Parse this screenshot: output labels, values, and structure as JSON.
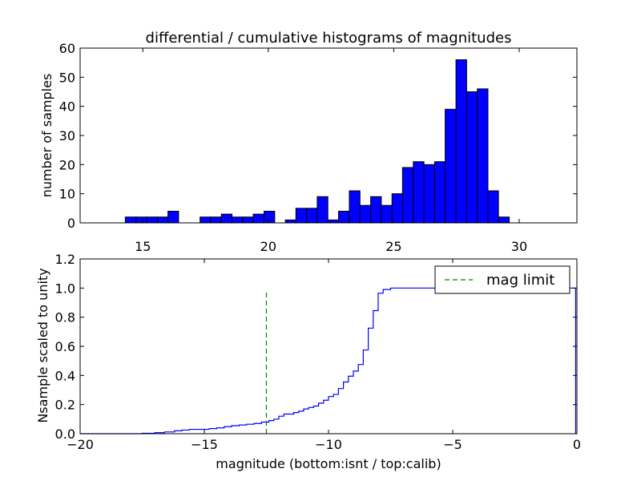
{
  "chart_data": [
    {
      "type": "bar",
      "title": "differential / cumulative histograms of magnitudes",
      "xlabel": "",
      "ylabel": "number of samples",
      "xlim": [
        12.5,
        32.3
      ],
      "ylim": [
        0,
        60
      ],
      "xticks": [
        15,
        20,
        25,
        30
      ],
      "yticks": [
        0,
        10,
        20,
        30,
        40,
        50,
        60
      ],
      "bar_color": "#0000ff",
      "bin_width": 0.425,
      "bins": [
        {
          "left": 14.3,
          "count": 2
        },
        {
          "left": 14.73,
          "count": 2
        },
        {
          "left": 15.15,
          "count": 2
        },
        {
          "left": 15.58,
          "count": 2
        },
        {
          "left": 16.0,
          "count": 4
        },
        {
          "left": 17.28,
          "count": 2
        },
        {
          "left": 17.7,
          "count": 2
        },
        {
          "left": 18.13,
          "count": 3
        },
        {
          "left": 18.55,
          "count": 2
        },
        {
          "left": 18.98,
          "count": 2
        },
        {
          "left": 19.4,
          "count": 3
        },
        {
          "left": 19.83,
          "count": 4
        },
        {
          "left": 20.68,
          "count": 1
        },
        {
          "left": 21.1,
          "count": 5
        },
        {
          "left": 21.53,
          "count": 5
        },
        {
          "left": 21.95,
          "count": 9
        },
        {
          "left": 22.38,
          "count": 1
        },
        {
          "left": 22.8,
          "count": 4
        },
        {
          "left": 23.23,
          "count": 11
        },
        {
          "left": 23.65,
          "count": 6
        },
        {
          "left": 24.08,
          "count": 9
        },
        {
          "left": 24.5,
          "count": 6
        },
        {
          "left": 24.93,
          "count": 10
        },
        {
          "left": 25.35,
          "count": 19
        },
        {
          "left": 25.78,
          "count": 21
        },
        {
          "left": 26.2,
          "count": 20
        },
        {
          "left": 26.63,
          "count": 21
        },
        {
          "left": 27.05,
          "count": 39
        },
        {
          "left": 27.48,
          "count": 56
        },
        {
          "left": 27.9,
          "count": 45
        },
        {
          "left": 28.33,
          "count": 46
        },
        {
          "left": 28.75,
          "count": 11
        },
        {
          "left": 29.18,
          "count": 2
        }
      ]
    },
    {
      "type": "line",
      "title": "",
      "xlabel": "magnitude (bottom:isnt / top:calib)",
      "ylabel": "Nsample scaled to unity",
      "xlim": [
        -20,
        0
      ],
      "ylim": [
        0,
        1.2
      ],
      "xticks": [
        -20,
        -15,
        -10,
        -5,
        0
      ],
      "yticks": [
        0.0,
        0.2,
        0.4,
        0.6,
        0.8,
        1.0,
        1.2
      ],
      "legend_position": "top-right",
      "series": [
        {
          "name": "",
          "color": "#0000ff",
          "style": "steps",
          "points": [
            [
              -20,
              0
            ],
            [
              -18.0,
              0
            ],
            [
              -17.5,
              0.003
            ],
            [
              -17.0,
              0.007
            ],
            [
              -16.6,
              0.012
            ],
            [
              -16.2,
              0.02
            ],
            [
              -15.9,
              0.025
            ],
            [
              -15.6,
              0.03
            ],
            [
              -14.8,
              0.035
            ],
            [
              -14.5,
              0.04
            ],
            [
              -14.2,
              0.048
            ],
            [
              -13.9,
              0.055
            ],
            [
              -13.6,
              0.06
            ],
            [
              -13.3,
              0.065
            ],
            [
              -13.0,
              0.07
            ],
            [
              -12.7,
              0.08
            ],
            [
              -12.4,
              0.09
            ],
            [
              -12.2,
              0.1
            ],
            [
              -12.0,
              0.12
            ],
            [
              -11.8,
              0.135
            ],
            [
              -11.4,
              0.145
            ],
            [
              -11.2,
              0.155
            ],
            [
              -11.0,
              0.17
            ],
            [
              -10.8,
              0.18
            ],
            [
              -10.6,
              0.19
            ],
            [
              -10.4,
              0.21
            ],
            [
              -10.2,
              0.23
            ],
            [
              -10.0,
              0.255
            ],
            [
              -9.8,
              0.27
            ],
            [
              -9.6,
              0.31
            ],
            [
              -9.4,
              0.355
            ],
            [
              -9.2,
              0.395
            ],
            [
              -9.0,
              0.43
            ],
            [
              -8.8,
              0.475
            ],
            [
              -8.6,
              0.575
            ],
            [
              -8.4,
              0.725
            ],
            [
              -8.2,
              0.845
            ],
            [
              -8.0,
              0.965
            ],
            [
              -7.8,
              0.99
            ],
            [
              -7.5,
              1.0
            ],
            [
              -0.05,
              1.0
            ],
            [
              -0.05,
              0.0
            ],
            [
              0,
              0
            ]
          ]
        },
        {
          "name": "mag limit",
          "color": "#008000",
          "style": "dashed",
          "points": [
            [
              -12.5,
              0
            ],
            [
              -12.5,
              0.97
            ]
          ]
        }
      ]
    }
  ]
}
